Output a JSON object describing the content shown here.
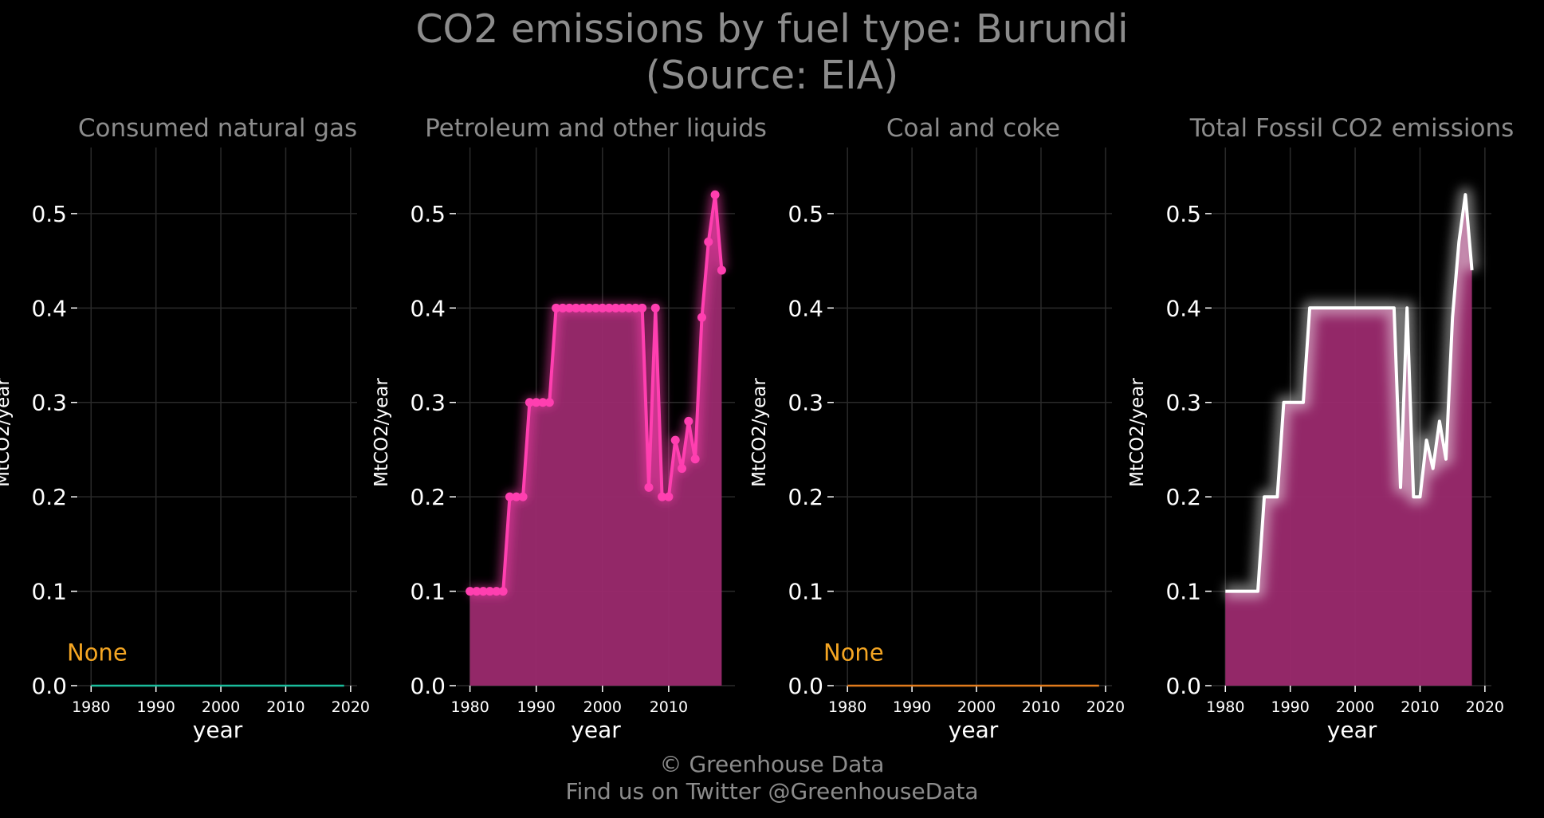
{
  "title_line1": "CO2 emissions by fuel type: Burundi",
  "title_line2": "(Source: EIA)",
  "footer_line1": "© Greenhouse Data",
  "footer_line2": "Find us on Twitter @GreenhouseData",
  "colors": {
    "background": "#000000",
    "title": "#8c8c8c",
    "tick": "#ffffff",
    "grid": "#2a2a2a",
    "gas_line": "#1abc9c",
    "petroleum": "#ff3fb0",
    "petroleum_fill": "#9b2a6e",
    "coal_line": "#e07b1c",
    "total_line": "#ffffff",
    "none_label": "#f5a623"
  },
  "chart_data": [
    {
      "type": "line",
      "title": "Consumed natural gas",
      "xlabel": "year",
      "ylabel": "MtCO2/year",
      "xlim": [
        1978,
        2021
      ],
      "ylim": [
        0,
        0.57
      ],
      "xticks": [
        1980,
        1990,
        2000,
        2010,
        2020
      ],
      "yticks": [
        0.0,
        0.1,
        0.2,
        0.3,
        0.4,
        0.5
      ],
      "grid": true,
      "annotation": "None",
      "series": [
        {
          "x": [
            1980,
            2019
          ],
          "y": [
            0,
            0
          ]
        }
      ]
    },
    {
      "type": "area",
      "title": "Petroleum and other liquids",
      "xlabel": "year",
      "ylabel": "MtCO2/year",
      "xlim": [
        1978,
        2020
      ],
      "ylim": [
        0,
        0.57
      ],
      "xticks": [
        1980,
        1990,
        2000,
        2010
      ],
      "yticks": [
        0.0,
        0.1,
        0.2,
        0.3,
        0.4,
        0.5
      ],
      "grid": true,
      "series": [
        {
          "x": [
            1980,
            1981,
            1982,
            1983,
            1984,
            1985,
            1986,
            1987,
            1988,
            1989,
            1990,
            1991,
            1992,
            1993,
            1994,
            1995,
            1996,
            1997,
            1998,
            1999,
            2000,
            2001,
            2002,
            2003,
            2004,
            2005,
            2006,
            2007,
            2008,
            2009,
            2010,
            2011,
            2012,
            2013,
            2014,
            2015,
            2016,
            2017,
            2018
          ],
          "y": [
            0.1,
            0.1,
            0.1,
            0.1,
            0.1,
            0.1,
            0.2,
            0.2,
            0.2,
            0.3,
            0.3,
            0.3,
            0.3,
            0.4,
            0.4,
            0.4,
            0.4,
            0.4,
            0.4,
            0.4,
            0.4,
            0.4,
            0.4,
            0.4,
            0.4,
            0.4,
            0.4,
            0.21,
            0.4,
            0.2,
            0.2,
            0.26,
            0.23,
            0.28,
            0.24,
            0.39,
            0.47,
            0.52,
            0.44
          ]
        }
      ]
    },
    {
      "type": "line",
      "title": "Coal and coke",
      "xlabel": "year",
      "ylabel": "MtCO2/year",
      "xlim": [
        1978,
        2021
      ],
      "ylim": [
        0,
        0.57
      ],
      "xticks": [
        1980,
        1990,
        2000,
        2010,
        2020
      ],
      "yticks": [
        0.0,
        0.1,
        0.2,
        0.3,
        0.4,
        0.5
      ],
      "grid": true,
      "annotation": "None",
      "series": [
        {
          "x": [
            1980,
            2019
          ],
          "y": [
            0,
            0
          ]
        }
      ]
    },
    {
      "type": "area",
      "title": "Total Fossil CO2 emissions",
      "xlabel": "year",
      "ylabel": "MtCO2/year",
      "xlim": [
        1978,
        2021
      ],
      "ylim": [
        0,
        0.57
      ],
      "xticks": [
        1980,
        1990,
        2000,
        2010,
        2020
      ],
      "yticks": [
        0.0,
        0.1,
        0.2,
        0.3,
        0.4,
        0.5
      ],
      "grid": true,
      "series": [
        {
          "x": [
            1980,
            1981,
            1982,
            1983,
            1984,
            1985,
            1986,
            1987,
            1988,
            1989,
            1990,
            1991,
            1992,
            1993,
            1994,
            1995,
            1996,
            1997,
            1998,
            1999,
            2000,
            2001,
            2002,
            2003,
            2004,
            2005,
            2006,
            2007,
            2008,
            2009,
            2010,
            2011,
            2012,
            2013,
            2014,
            2015,
            2016,
            2017,
            2018
          ],
          "y": [
            0.1,
            0.1,
            0.1,
            0.1,
            0.1,
            0.1,
            0.2,
            0.2,
            0.2,
            0.3,
            0.3,
            0.3,
            0.3,
            0.4,
            0.4,
            0.4,
            0.4,
            0.4,
            0.4,
            0.4,
            0.4,
            0.4,
            0.4,
            0.4,
            0.4,
            0.4,
            0.4,
            0.21,
            0.4,
            0.2,
            0.2,
            0.26,
            0.23,
            0.28,
            0.24,
            0.39,
            0.47,
            0.52,
            0.44
          ]
        }
      ]
    }
  ]
}
